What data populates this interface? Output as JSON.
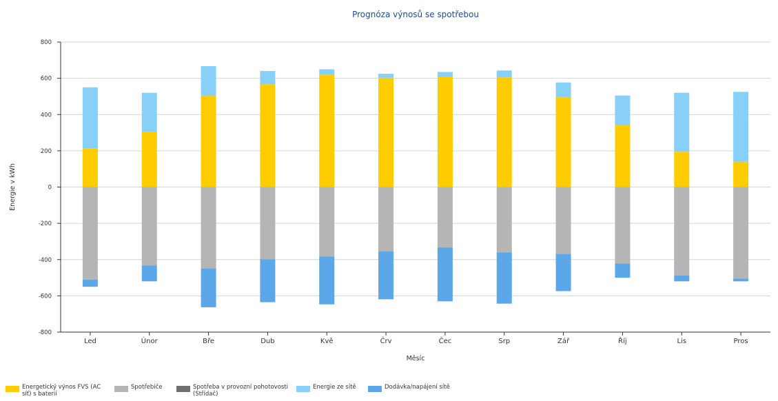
{
  "chart_data": {
    "type": "bar",
    "stacked": true,
    "title": "Prognóza výnosů se spotřebou",
    "xlabel": "Měsíc",
    "ylabel": "Energie v kWh",
    "ylim": [
      -800,
      800
    ],
    "yticks": [
      800,
      600,
      400,
      200,
      0,
      -200,
      -400,
      -600,
      -800
    ],
    "grid": true,
    "legend_position": "bottom-left",
    "categories": [
      "Led",
      "Únor",
      "Bře",
      "Dub",
      "Kvě",
      "Črv",
      "Čec",
      "Srp",
      "Zář",
      "Říj",
      "Lis",
      "Pros"
    ],
    "series": [
      {
        "name": "Energetický výnos FVS (AC síť) s baterií",
        "color": "#ffcc00",
        "values": [
          212,
          303,
          505,
          567,
          620,
          603,
          610,
          605,
          497,
          342,
          195,
          140
        ]
      },
      {
        "name": "Energie ze sítě",
        "color": "#88d0f8",
        "values": [
          338,
          217,
          162,
          73,
          30,
          22,
          25,
          38,
          80,
          163,
          325,
          385
        ]
      },
      {
        "name": "Spotřebiče",
        "color": "#b5b5b5",
        "values": [
          -510,
          -433,
          -449,
          -399,
          -383,
          -354,
          -333,
          -360,
          -369,
          -422,
          -488,
          -505
        ]
      },
      {
        "name": "Spotřeba v provozní pohotovosti (Střídač)",
        "color": "#707070",
        "values": [
          0,
          0,
          0,
          0,
          0,
          0,
          0,
          0,
          0,
          0,
          0,
          0
        ]
      },
      {
        "name": "Dodávka/napájení sítě",
        "color": "#5ba7e8",
        "values": [
          -40,
          -87,
          -214,
          -236,
          -264,
          -265,
          -297,
          -283,
          -205,
          -78,
          -32,
          -15
        ]
      }
    ]
  },
  "legend": [
    {
      "label": "Energetický výnos FVS (AC síť) s baterií",
      "color": "#ffcc00",
      "icon": "legend-swatch"
    },
    {
      "label": "Spotřebiče",
      "color": "#b5b5b5",
      "icon": "legend-swatch"
    },
    {
      "label": "Spotřeba v provozní pohotovosti (Střídač)",
      "color": "#707070",
      "icon": "legend-swatch"
    },
    {
      "label": "Energie ze sítě",
      "color": "#88d0f8",
      "icon": "legend-swatch"
    },
    {
      "label": "Dodávka/napájení sítě",
      "color": "#5ba7e8",
      "icon": "legend-swatch"
    }
  ],
  "colors": {
    "title": "#1a4d8f",
    "axis": "#333333",
    "grid": "#d4d4d4",
    "tick_text": "#333333"
  }
}
